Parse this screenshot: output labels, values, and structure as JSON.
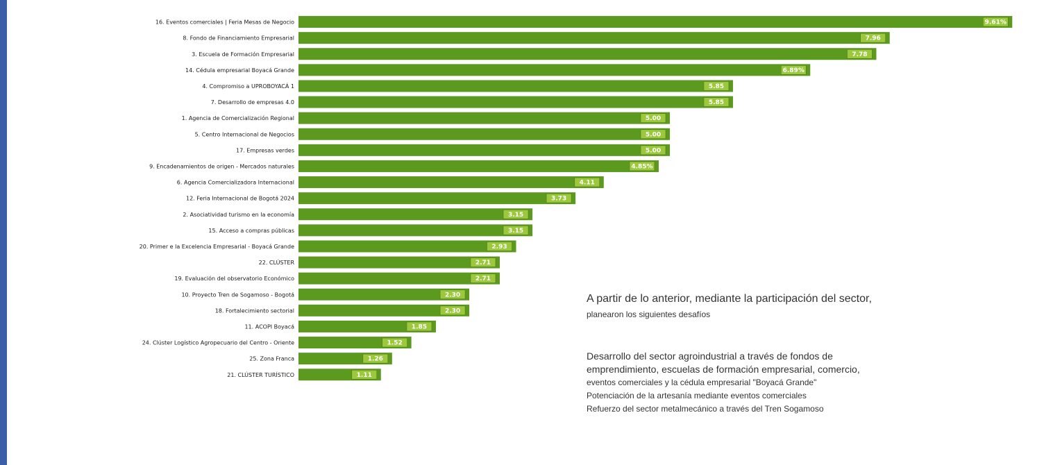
{
  "chart_data": {
    "type": "bar",
    "orientation": "horizontal",
    "categories": [
      "16. Eventos comerciales | Feria Mesas de Negocio",
      "8. Fondo de Financiamiento Empresarial",
      "3. Escuela de Formación Empresarial",
      "14. Cédula empresarial Boyacá Grande",
      "4. Compromiso a UPROBOYACÁ 1",
      "7. Desarrollo de empresas 4.0",
      "1. Agencia de Comercialización Regional",
      "5. Centro Internacional de Negocios",
      "17. Empresas verdes",
      "9. Encadenamientos de origen - Mercados naturales",
      "6. Agencia Comercializadora Internacional",
      "12. Feria Internacional de Bogotá 2024",
      "2. Asociatividad turismo en la economía",
      "15. Acceso a compras públicas",
      "20. Primer e la Excelencia Empresarial - Boyacá Grande",
      "22. CLÚSTER",
      "19. Evaluación del observatorio Económico",
      "10. Proyecto Tren de Sogamoso - Bogotá",
      "18. Fortalecimiento sectorial",
      "11. ACOPI Boyacá",
      "24. Clúster Logístico Agropecuario del Centro - Oriente",
      "25. Zona Franca",
      "21. CLÚSTER TURÍSTICO"
    ],
    "values": [
      9.61,
      7.96,
      7.78,
      6.89,
      5.85,
      5.85,
      5.0,
      5.0,
      5.0,
      4.85,
      4.11,
      3.73,
      3.15,
      3.15,
      2.93,
      2.71,
      2.71,
      2.3,
      2.3,
      1.85,
      1.52,
      1.26,
      1.11
    ],
    "value_labels": [
      "9.61%",
      "7.96",
      "7.78",
      "6.89%",
      "5.85",
      "5.85",
      "5.00",
      "5.00",
      "5.00",
      "4.85%",
      "4.11",
      "3.73",
      "3.15",
      "3.15",
      "2.93",
      "2.71",
      "2.71",
      "2.30",
      "2.30",
      "1.85",
      "1.52",
      "1.26",
      "1.11"
    ],
    "xlim": [
      0,
      10
    ],
    "grid": false,
    "bar_color": "#5b9a1f",
    "label_box_color": "#9bc83c"
  },
  "text_panel": {
    "intro": "A partir de lo anterior, mediante la participación del sector,",
    "intro_line2": "planearon los siguientes desafíos",
    "items": [
      "Desarrollo del sector agroindustrial a través de fondos de",
      "emprendimiento, escuelas de formación empresarial, comercio,",
      "eventos comerciales y la cédula empresarial \"Boyacá Grande\"",
      "Potenciación de la artesanía mediante eventos comerciales",
      "Refuerzo del sector metalmecánico a través del Tren Sogamoso"
    ]
  },
  "colors": {
    "accent_bar": "#3a5fa8",
    "text": "#333333"
  }
}
